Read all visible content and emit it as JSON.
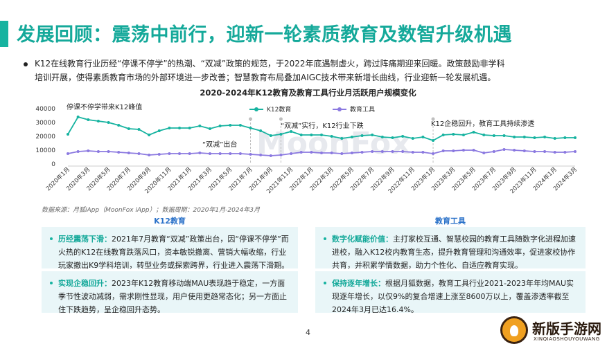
{
  "header": {
    "title": "发展回顾：震荡中前行，迎新一轮素质教育及数智升级机遇"
  },
  "intro": {
    "line1": "K12在线教育行业历经“停课不停学”的热潮、“双减”政策的规范，于2022年底遇制虚火，跨过阵痛期迎来回暖。政策鼓励非学科",
    "line2": "培训开展，使得素质教育市场的外部环境进一步改善；智慧教育布局叠加AIGC技术带来新增长曲线，行业迎新一轮发展机遇。"
  },
  "chart_data": {
    "type": "line",
    "title": "2020-2024年K12教育及教育工具行业月活跃用户规模变化",
    "xlabel": "",
    "ylabel": "",
    "ylim": [
      0,
      40000
    ],
    "yticks": [
      "40000",
      "30000",
      "20000",
      "10000",
      "0"
    ],
    "grid": false,
    "legend_position": "top",
    "x_tick_labels": [
      "2020年1月",
      "2020年3月",
      "2020年5月",
      "2020年7月",
      "2020年9月",
      "2020年11月",
      "2021年1月",
      "2021年3月",
      "2021年5月",
      "2021年7月",
      "2021年9月",
      "2021年11月",
      "2022年1月",
      "2022年3月",
      "2022年5月",
      "2022年7月",
      "2022年9月",
      "2022年11月",
      "2023年1月",
      "2023年3月",
      "2023年5月",
      "2023年7月",
      "2023年9月",
      "2023年11月",
      "2024年1月",
      "2024年3月"
    ],
    "series": [
      {
        "name": "K12教育",
        "color": "#16b3a0",
        "values": [
          21500,
          34000,
          32000,
          31000,
          30000,
          28000,
          25500,
          25000,
          21000,
          24000,
          26000,
          26000,
          26000,
          27500,
          25500,
          27500,
          28000,
          28000,
          26000,
          24000,
          20500,
          21500,
          23500,
          21000,
          21000,
          21000,
          20000,
          18500,
          19500,
          20500,
          21000,
          19500,
          19000,
          20000,
          18500,
          19500,
          17000,
          21000,
          21500,
          21000,
          23000,
          21000,
          20500,
          20500,
          19500,
          19500,
          19000,
          19500,
          18500,
          19000,
          19000
        ]
      },
      {
        "name": "教育工具",
        "color": "#8b79e0",
        "values": [
          7500,
          9000,
          9500,
          9000,
          9000,
          8500,
          8000,
          7500,
          6500,
          7000,
          7500,
          7500,
          7500,
          8000,
          7500,
          7500,
          7500,
          7500,
          7000,
          6500,
          6000,
          6500,
          7500,
          8500,
          8500,
          8000,
          8000,
          7500,
          8000,
          8500,
          9000,
          9000,
          9000,
          9000,
          8500,
          8500,
          7500,
          9500,
          9500,
          10000,
          10000,
          8000,
          9000,
          10500,
          10000,
          9500,
          9000,
          9000,
          8500,
          8500,
          9000
        ]
      }
    ],
    "annotations": [
      "停课不停学带来K12峰值",
      "“双减”出台",
      "“双减”实行，K12行业下跌",
      "K12企稳回升，教育工具持续渗透"
    ]
  },
  "source": "数据来源：月狐iApp（MoonFox iApp）；数据周期：2020年1月-2024年3月",
  "watermark": "MoonFox",
  "panels": {
    "left_title": "K12教育",
    "right_title": "教育工具",
    "left": [
      {
        "lead": "历经震荡下滑：",
        "text": "2021年7月教育“双减”政策出台，因“停课不停学”而火热的K12在线教育跌落风口，资本敏锐撤离、营销大幅收缩，行业玩家撤出K9学科培训，转型业务或探索跨界，行业进入震荡下滑期。"
      },
      {
        "lead": "实现企稳回升：",
        "text": "2023年K12教育移动端MAU表现趋于稳定，一方面季节性波动减弱，需求刚性显现，用户使用更趋常态化；另一方面止住下跌趋势，呈企稳回升态势。"
      }
    ],
    "right": [
      {
        "lead": "数字化赋能价值：",
        "text": "主打家校互通、智慧校园的教育工具随数字化进程加速进校，融入K12校内教育生态，提升教育管理和沟通效率，促进家校协作共育，并积累学情数据，助力个性化、自适应教育实现。"
      },
      {
        "lead": "保持逐年增长：",
        "text": "根据月狐数据，教育工具行业2021-2023年年均MAU实现逐年增长，以仅9%的复合增速上涨至8600万以上，覆盖渗透率截至2024年3月已达16.4%。"
      }
    ]
  },
  "page_number": "4",
  "logo": {
    "text": "新版手游网",
    "subtext": "XINQIAOSHOUYOUWANG"
  }
}
